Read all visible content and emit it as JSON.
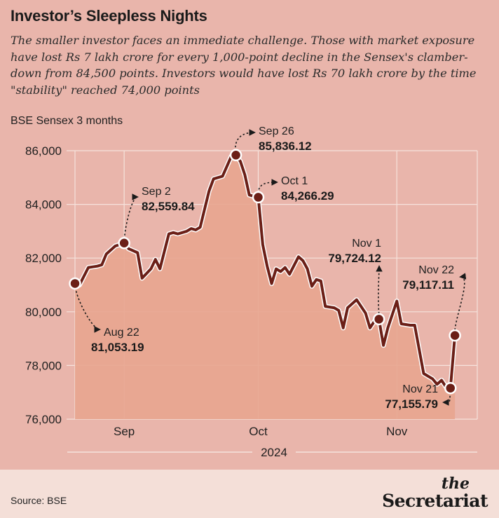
{
  "header": {
    "title": "Investor’s Sleepless Nights",
    "subtitle": "The smaller investor faces an immediate challenge. Those with market exposure have lost Rs 7 lakh crore for every 1,000-point decline in the Sensex's clamber-down from 84,500 points. Investors would have lost Rs 70 lakh crore by the time \"stability\" reached 74,000 points"
  },
  "footer": {
    "source": "Source: BSE",
    "logo_top": "the",
    "logo_bottom": "Secretariat"
  },
  "colors": {
    "background": "#e9b5ab",
    "area_fill": "#e8a58f",
    "line": "#6b1f17",
    "grid": "#f6e3dd"
  },
  "chart_data": {
    "type": "area",
    "ylabel": "BSE Sensex 3 months",
    "ylim": [
      76000,
      86000
    ],
    "y_ticks": [
      76000,
      78000,
      80000,
      82000,
      84000,
      86000
    ],
    "y_tick_labels": [
      "76,000",
      "78,000",
      "80,000",
      "82,000",
      "84,000",
      "86,000"
    ],
    "xlim": [
      0,
      90
    ],
    "x_ticks": [
      {
        "x": 11,
        "label": "Sep"
      },
      {
        "x": 41,
        "label": "Oct"
      },
      {
        "x": 72,
        "label": "Nov"
      }
    ],
    "year_label": "2024",
    "grid": true,
    "points": [
      [
        0,
        81053
      ],
      [
        1,
        81000
      ],
      [
        3,
        81650
      ],
      [
        5,
        81700
      ],
      [
        6,
        81750
      ],
      [
        7,
        82150
      ],
      [
        9,
        82450
      ],
      [
        11,
        82560
      ],
      [
        12,
        82350
      ],
      [
        14,
        82200
      ],
      [
        15,
        81250
      ],
      [
        17,
        81600
      ],
      [
        18,
        81950
      ],
      [
        19,
        81600
      ],
      [
        21,
        82900
      ],
      [
        22,
        82950
      ],
      [
        23,
        82900
      ],
      [
        25,
        83000
      ],
      [
        26,
        83100
      ],
      [
        27,
        83050
      ],
      [
        28,
        83150
      ],
      [
        30,
        84500
      ],
      [
        31,
        84950
      ],
      [
        32,
        85000
      ],
      [
        33,
        85050
      ],
      [
        35,
        85800
      ],
      [
        36,
        85836
      ],
      [
        37,
        85600
      ],
      [
        38,
        85100
      ],
      [
        39,
        84350
      ],
      [
        40,
        84300
      ],
      [
        41,
        84266
      ],
      [
        42,
        82500
      ],
      [
        43,
        81700
      ],
      [
        44,
        81050
      ],
      [
        45,
        81600
      ],
      [
        46,
        81500
      ],
      [
        47,
        81650
      ],
      [
        48,
        81400
      ],
      [
        50,
        82050
      ],
      [
        51,
        81900
      ],
      [
        52,
        81600
      ],
      [
        53,
        80950
      ],
      [
        54,
        81200
      ],
      [
        55,
        81150
      ],
      [
        56,
        80200
      ],
      [
        58,
        80150
      ],
      [
        59,
        80050
      ],
      [
        60,
        79400
      ],
      [
        61,
        80150
      ],
      [
        63,
        80450
      ],
      [
        65,
        79950
      ],
      [
        66,
        79400
      ],
      [
        67,
        79650
      ],
      [
        68,
        79724
      ],
      [
        69,
        78750
      ],
      [
        70,
        79400
      ],
      [
        72,
        80400
      ],
      [
        73,
        79550
      ],
      [
        75,
        79500
      ],
      [
        76,
        79500
      ],
      [
        78,
        77700
      ],
      [
        80,
        77500
      ],
      [
        81,
        77300
      ],
      [
        82,
        77450
      ],
      [
        83,
        77200
      ],
      [
        84,
        77156
      ],
      [
        85,
        79117
      ]
    ],
    "annotations": [
      {
        "x": 0,
        "y": 81053,
        "date": "Aug 22",
        "value": "81,053.19"
      },
      {
        "x": 11,
        "y": 82560,
        "date": "Sep 2",
        "value": "82,559.84"
      },
      {
        "x": 36,
        "y": 85836,
        "date": "Sep 26",
        "value": "85,836.12"
      },
      {
        "x": 41,
        "y": 84266,
        "date": "Oct 1",
        "value": "84,266.29"
      },
      {
        "x": 68,
        "y": 79724,
        "date": "Nov 1",
        "value": "79,724.12"
      },
      {
        "x": 85,
        "y": 79117,
        "date": "Nov 22",
        "value": "79,117.11"
      },
      {
        "x": 84,
        "y": 77156,
        "date": "Nov 21",
        "value": "77,155.79"
      }
    ]
  }
}
